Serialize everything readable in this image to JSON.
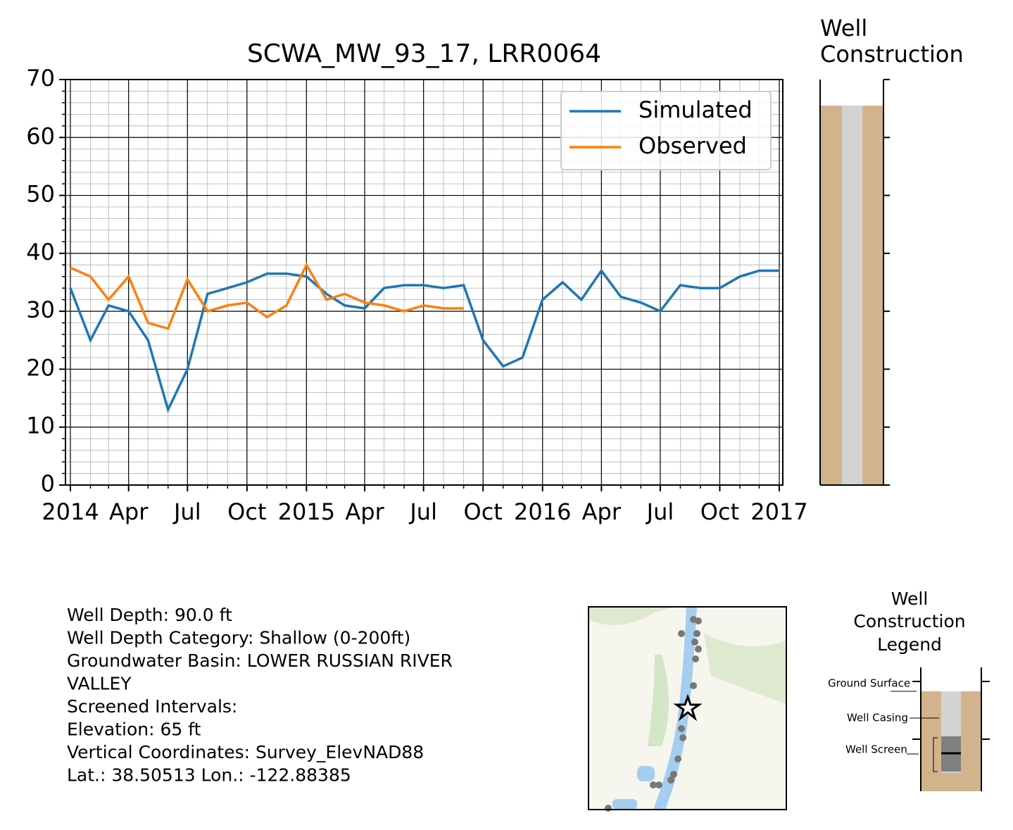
{
  "chart_data": [
    {
      "type": "line",
      "title": "SCWA_MW_93_17, LRR0064",
      "x_simulated": [
        "2014-01",
        "2014-02",
        "2014-03",
        "2014-04",
        "2014-05",
        "2014-06",
        "2014-07",
        "2014-08",
        "2014-09",
        "2014-10",
        "2014-11",
        "2014-12",
        "2015-01",
        "2015-02",
        "2015-03",
        "2015-04",
        "2015-05",
        "2015-06",
        "2015-07",
        "2015-08",
        "2015-09",
        "2015-10",
        "2015-11",
        "2015-12",
        "2016-01",
        "2016-02",
        "2016-03",
        "2016-04",
        "2016-05",
        "2016-06",
        "2016-07",
        "2016-08",
        "2016-09",
        "2016-10",
        "2016-11",
        "2016-12",
        "2017-01"
      ],
      "x_observed": [
        "2014-01",
        "2014-02",
        "2014-03",
        "2014-04",
        "2014-05",
        "2014-06",
        "2014-07",
        "2014-08",
        "2014-09",
        "2014-10",
        "2014-11",
        "2014-12",
        "2015-01",
        "2015-02",
        "2015-03",
        "2015-04",
        "2015-05",
        "2015-06",
        "2015-07",
        "2015-08",
        "2015-09"
      ],
      "series": [
        {
          "name": "Simulated",
          "color": "#1f77b4",
          "x_key": "x_simulated",
          "values": [
            34,
            25,
            31,
            30,
            25,
            13,
            20,
            33,
            34,
            35,
            36.5,
            36.5,
            36,
            33,
            31,
            30.5,
            34,
            34.5,
            34.5,
            34,
            34.5,
            25,
            20.5,
            22,
            32,
            35,
            32,
            37,
            32.5,
            31.5,
            30,
            34.5,
            34,
            34,
            36,
            37,
            37
          ]
        },
        {
          "name": "Observed",
          "color": "#ff7f0e",
          "x_key": "x_observed",
          "values": [
            37.5,
            36,
            32,
            36,
            28,
            27,
            35.5,
            30,
            31,
            31.5,
            29,
            31,
            38,
            32,
            33,
            31.5,
            31,
            30,
            31,
            30.5,
            30.5
          ]
        }
      ],
      "xlim": [
        "2014-01",
        "2017-01"
      ],
      "xticks": [
        {
          "value": "2014-01",
          "label": "2014"
        },
        {
          "value": "2014-04",
          "label": "Apr"
        },
        {
          "value": "2014-07",
          "label": "Jul"
        },
        {
          "value": "2014-10",
          "label": "Oct"
        },
        {
          "value": "2015-01",
          "label": "2015"
        },
        {
          "value": "2015-04",
          "label": "Apr"
        },
        {
          "value": "2015-07",
          "label": "Jul"
        },
        {
          "value": "2015-10",
          "label": "Oct"
        },
        {
          "value": "2016-01",
          "label": "2016"
        },
        {
          "value": "2016-04",
          "label": "Apr"
        },
        {
          "value": "2016-07",
          "label": "Jul"
        },
        {
          "value": "2016-10",
          "label": "Oct"
        },
        {
          "value": "2017-01",
          "label": "2017"
        }
      ],
      "ylim": [
        0,
        70
      ],
      "yticks": [
        0,
        10,
        20,
        30,
        40,
        50,
        60,
        70
      ],
      "y_minor_ticks": [
        2,
        4,
        6,
        8,
        12,
        14,
        16,
        18,
        22,
        24,
        26,
        28,
        32,
        34,
        36,
        38,
        42,
        44,
        46,
        48,
        52,
        54,
        56,
        58,
        62,
        64,
        66,
        68
      ],
      "grid": true,
      "legend": "upper right"
    },
    {
      "type": "well",
      "title": "Well Construction",
      "ground_surface": 65.5,
      "ylim": [
        0,
        70
      ],
      "yticks": [
        0,
        10,
        20,
        30,
        40,
        50,
        60,
        70
      ]
    }
  ],
  "well_info": [
    "Well Depth: 90.0 ft",
    "Well Depth Category: Shallow (0-200ft)",
    "Groundwater Basin: LOWER RUSSIAN RIVER",
    "VALLEY",
    "Screened Intervals:",
    "Elevation: 65 ft",
    "Vertical Coordinates: Survey_ElevNAD88",
    "Lat.: 38.50513 Lon.: -122.88385"
  ],
  "legend_diagram": {
    "title": [
      "Well",
      "Construction",
      "Legend"
    ],
    "labels": [
      "Ground Surface",
      "Well Casing",
      "Well Screen"
    ]
  }
}
